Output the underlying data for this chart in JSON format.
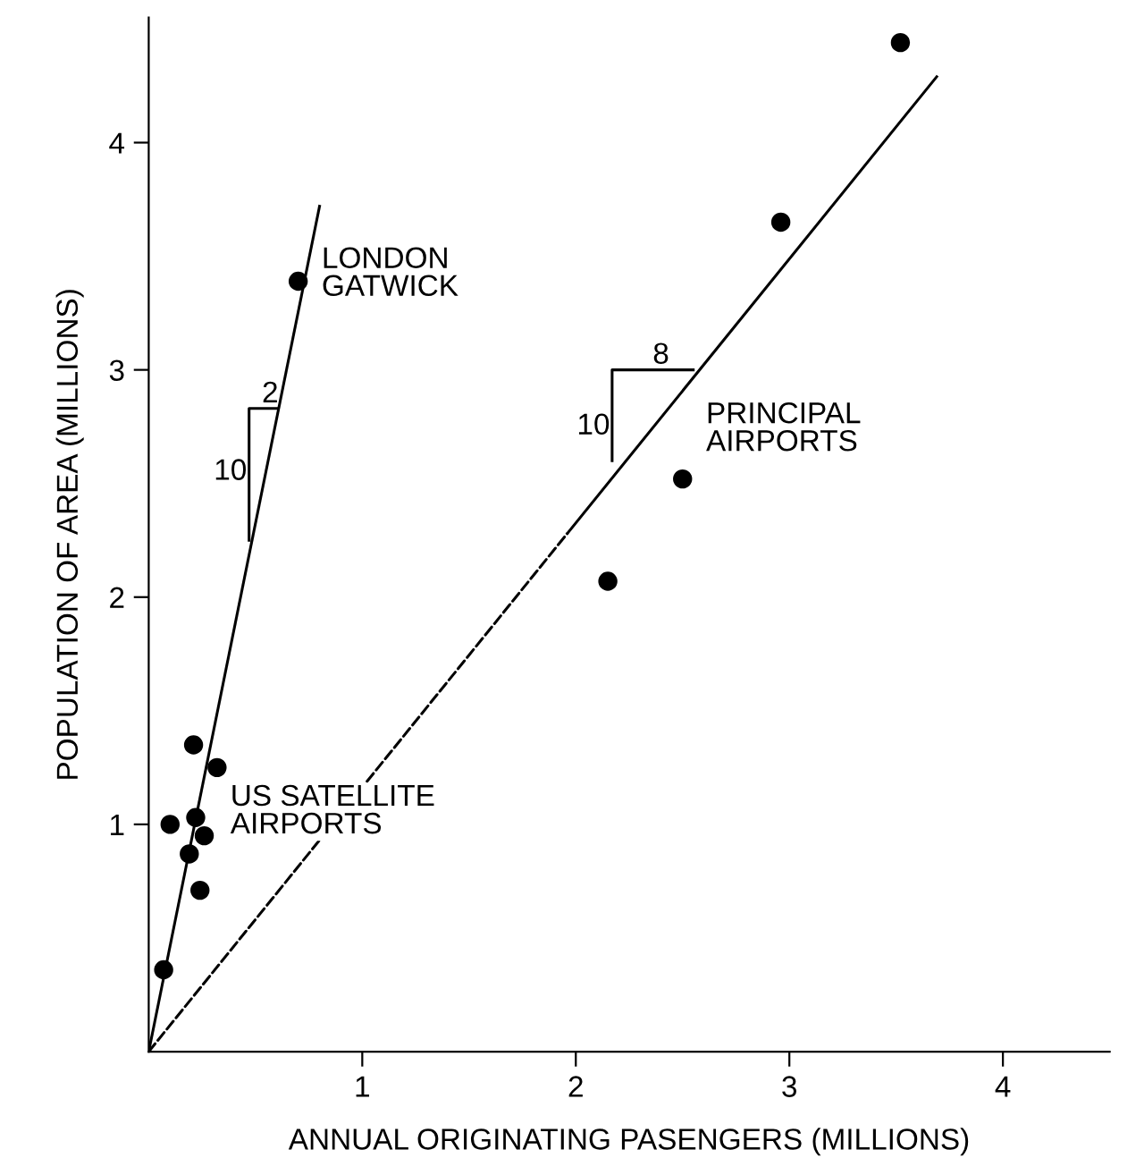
{
  "chart_data": {
    "type": "scatter",
    "xlabel": "ANNUAL ORIGINATING PASENGERS (MILLIONS)",
    "ylabel": "POPULATION OF AREA (MILLIONS)",
    "xlim": [
      0,
      4.5
    ],
    "ylim": [
      0,
      4.55
    ],
    "xticks": [
      1,
      2,
      3,
      4
    ],
    "yticks": [
      1,
      2,
      3,
      4
    ],
    "grid": false,
    "legend": false,
    "series": [
      {
        "color": "#000000",
        "marker": "circle",
        "x": [
          0.7,
          0.07,
          0.1,
          0.21,
          0.32,
          0.22,
          0.19,
          0.26,
          0.24,
          2.15,
          2.5,
          2.96,
          3.52
        ],
        "values": [
          3.39,
          0.36,
          1.0,
          1.35,
          1.25,
          1.03,
          0.87,
          0.95,
          0.71,
          2.07,
          2.52,
          3.65,
          4.44
        ]
      },
      {
        "type": "line",
        "color": "#000000",
        "line_style": "solid",
        "x": [
          0,
          0.8
        ],
        "values": [
          0,
          3.72
        ]
      },
      {
        "type": "line",
        "color": "#000000",
        "line_style": "dashed",
        "x": [
          0,
          1.96
        ],
        "values": [
          0,
          2.28
        ]
      },
      {
        "type": "line",
        "color": "#000000",
        "line_style": "solid",
        "x": [
          1.96,
          3.69
        ],
        "values": [
          2.28,
          4.29
        ]
      },
      {
        "type": "line",
        "color": "#000000",
        "line_style": "solid",
        "x": [
          0.47,
          0.47,
          0.6
        ],
        "values": [
          2.25,
          2.83,
          2.83
        ]
      },
      {
        "type": "line",
        "color": "#000000",
        "line_style": "solid",
        "x": [
          2.17,
          2.17,
          2.55
        ],
        "values": [
          2.6,
          3.0,
          3.0
        ]
      }
    ],
    "annotations": [
      "LONDON\nGATWICK",
      {
        "text": "2",
        "x": 0.53,
        "y": 2.83
      },
      {
        "text": "10",
        "x": 0.46,
        "y": 2.55
      },
      {
        "text": "8",
        "x": 2.36,
        "y": 3.0
      },
      {
        "text": "10",
        "x": 2.16,
        "y": 2.75
      },
      "PRINCIPAL\nAIRPORTS",
      "US SATELLITE\nAIRPORTS"
    ]
  }
}
